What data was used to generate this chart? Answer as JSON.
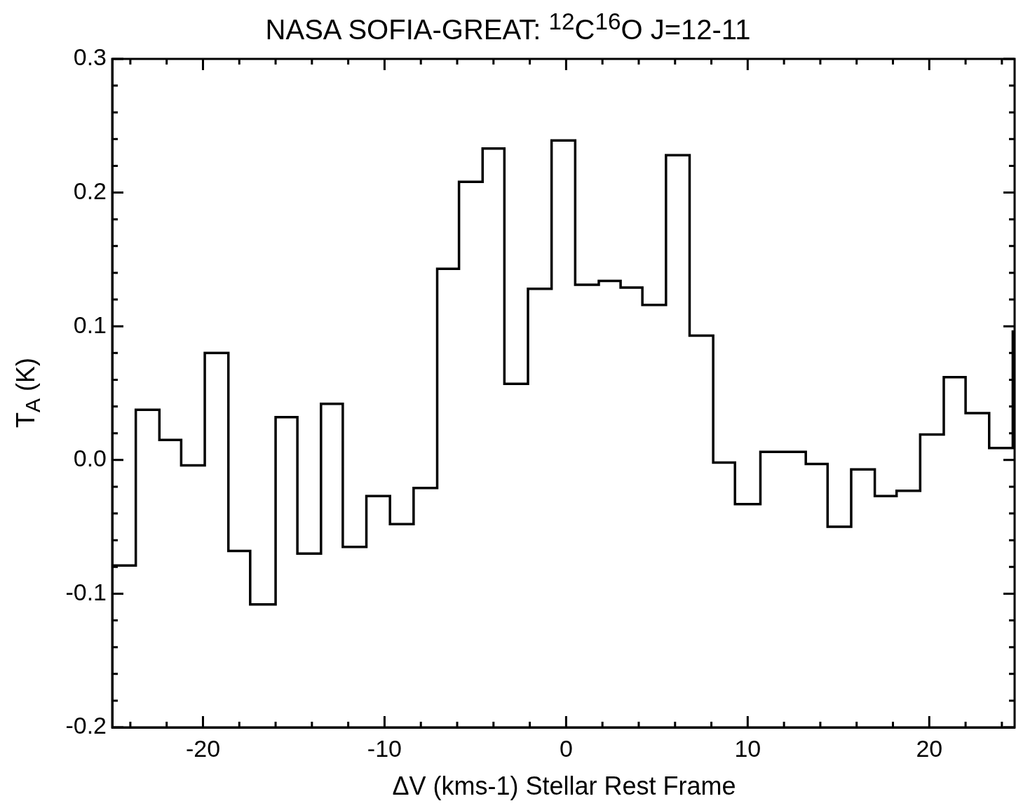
{
  "chart_data": {
    "type": "histogram",
    "title": "NASA SOFIA-GREAT: $^{12}$C$^{16}$O J=12-11",
    "xlabel": "ΔV (kms-1) Stellar Rest Frame",
    "ylabel": "T$_{A}$ (K)",
    "color": "#000000",
    "bins": [
      -25.0,
      -23.7,
      -22.4,
      -21.2,
      -19.9,
      -18.6,
      -17.4,
      -16.0,
      -14.8,
      -13.5,
      -12.3,
      -11.0,
      -9.7,
      -8.4,
      -7.1,
      -5.9,
      -4.6,
      -3.4,
      -2.1,
      -0.8,
      0.5,
      1.8,
      3.0,
      4.2,
      5.5,
      6.8,
      8.1,
      9.3,
      10.7,
      11.9,
      13.2,
      14.4,
      15.7,
      17.0,
      18.2,
      19.5,
      20.8,
      22.0,
      23.3,
      24.6,
      24.7
    ],
    "values": [
      -0.079,
      0.0375,
      0.015,
      -0.004,
      0.08,
      -0.068,
      -0.108,
      0.032,
      -0.07,
      0.042,
      -0.065,
      -0.027,
      -0.048,
      -0.021,
      0.143,
      0.208,
      0.233,
      0.057,
      0.128,
      0.239,
      0.131,
      0.134,
      0.129,
      0.116,
      0.228,
      0.093,
      -0.002,
      -0.033,
      0.006,
      0.006,
      -0.003,
      -0.05,
      -0.007,
      -0.027,
      -0.023,
      0.019,
      0.062,
      0.035,
      0.009,
      0.096
    ],
    "xlim": [
      -25,
      24.7
    ],
    "xticks": [
      {
        "value": -24,
        "label": null
      },
      {
        "value": -22,
        "label": null
      },
      -20,
      {
        "value": -18,
        "label": null
      },
      {
        "value": -16,
        "label": null
      },
      {
        "value": -14,
        "label": null
      },
      {
        "value": -12,
        "label": null
      },
      -10,
      {
        "value": -8,
        "label": null
      },
      {
        "value": -6,
        "label": null
      },
      {
        "value": -4,
        "label": null
      },
      {
        "value": -2,
        "label": null
      },
      0,
      {
        "value": 2,
        "label": null
      },
      {
        "value": 4,
        "label": null
      },
      {
        "value": 6,
        "label": null
      },
      {
        "value": 8,
        "label": null
      },
      10,
      {
        "value": 12,
        "label": null
      },
      {
        "value": 14,
        "label": null
      },
      {
        "value": 16,
        "label": null
      },
      {
        "value": 18,
        "label": null
      },
      20,
      {
        "value": 22,
        "label": null
      },
      {
        "value": 24,
        "label": null
      }
    ],
    "ylim": [
      -0.2,
      0.3
    ],
    "yticks": [
      {
        "value": -0.2,
        "label": "-0.2"
      },
      {
        "value": -0.18,
        "label": null
      },
      {
        "value": -0.16,
        "label": null
      },
      {
        "value": -0.14,
        "label": null
      },
      {
        "value": -0.12,
        "label": null
      },
      {
        "value": -0.1,
        "label": "-0.1"
      },
      {
        "value": -0.08,
        "label": null
      },
      {
        "value": -0.06,
        "label": null
      },
      {
        "value": -0.04,
        "label": null
      },
      {
        "value": -0.02,
        "label": null
      },
      {
        "value": 0,
        "label": "0.0"
      },
      {
        "value": 0.02,
        "label": null
      },
      {
        "value": 0.04,
        "label": null
      },
      {
        "value": 0.06,
        "label": null
      },
      {
        "value": 0.08,
        "label": null
      },
      {
        "value": 0.1,
        "label": "0.1"
      },
      {
        "value": 0.12,
        "label": null
      },
      {
        "value": 0.14,
        "label": null
      },
      {
        "value": 0.16,
        "label": null
      },
      {
        "value": 0.18,
        "label": null
      },
      {
        "value": 0.2,
        "label": "0.2"
      },
      {
        "value": 0.22,
        "label": null
      },
      {
        "value": 0.24,
        "label": null
      },
      {
        "value": 0.26,
        "label": null
      },
      {
        "value": 0.28,
        "label": null
      },
      {
        "value": 0.3,
        "label": "0.3"
      }
    ],
    "grid": false,
    "legend": false
  }
}
